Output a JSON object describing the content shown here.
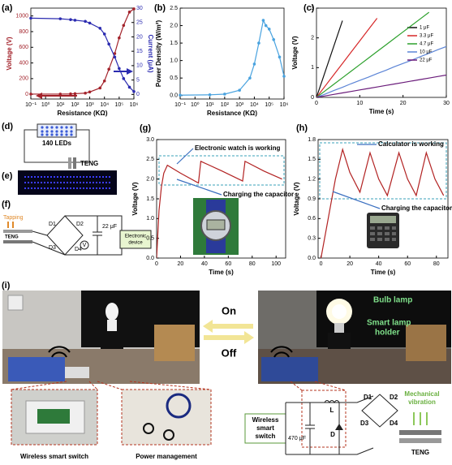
{
  "chart_data": [
    {
      "type": "line",
      "label": "(a)",
      "xlabel": "Resistance (KΩ)",
      "ylabel": "Voltage (V)",
      "y2label": "Current (μA)",
      "xlog": true,
      "xlim": [
        0.1,
        1000000
      ],
      "xticks": [
        {
          "value": 0.1,
          "label": "10⁻¹"
        },
        {
          "value": 1,
          "label": "10⁰"
        },
        {
          "value": 10,
          "label": "10¹"
        },
        {
          "value": 100,
          "label": "10²"
        },
        {
          "value": 1000,
          "label": "10³"
        },
        {
          "value": 10000,
          "label": "10⁴"
        },
        {
          "value": 100000,
          "label": "10⁵"
        },
        {
          "value": 1000000,
          "label": "10⁶"
        }
      ],
      "ylim": [
        -60,
        1100
      ],
      "yticks": [
        0,
        200,
        400,
        600,
        800,
        1000
      ],
      "y2lim": [
        -1.6,
        30
      ],
      "y2ticks": [
        0,
        5,
        10,
        15,
        20,
        25,
        30
      ],
      "markers": true,
      "x": [
        0.1,
        10,
        50,
        100,
        500,
        1000,
        5000,
        10000,
        20000,
        50000,
        100000,
        200000,
        500000,
        1000000
      ],
      "series": [
        {
          "name": "Voltage",
          "color": "#a3232b",
          "values": [
            3,
            3,
            5,
            8,
            15,
            30,
            80,
            170,
            320,
            520,
            720,
            880,
            1050,
            1090
          ]
        },
        {
          "name": "Current",
          "color": "#2b2bb0",
          "axis": "y2",
          "values": [
            26.5,
            26.3,
            26,
            25.8,
            25.4,
            24.8,
            23,
            21,
            17.5,
            13,
            9,
            5.5,
            2.5,
            1
          ]
        }
      ]
    },
    {
      "type": "line",
      "label": "(b)",
      "xlabel": "Resistance (KΩ)",
      "ylabel": "Power Density (W/m²)",
      "xlog": true,
      "xlim": [
        0.1,
        1000000
      ],
      "xticks": [
        {
          "value": 0.1,
          "label": "10⁻¹"
        },
        {
          "value": 1,
          "label": "10⁰"
        },
        {
          "value": 10,
          "label": "10¹"
        },
        {
          "value": 100,
          "label": "10²"
        },
        {
          "value": 1000,
          "label": "10³"
        },
        {
          "value": 10000,
          "label": "10⁴"
        },
        {
          "value": 100000,
          "label": "10⁵"
        },
        {
          "value": 1000000,
          "label": "10⁶"
        }
      ],
      "ylim": [
        -0.1,
        2.5
      ],
      "yticks": [
        {
          "value": 0,
          "label": "0.0"
        },
        {
          "value": 0.5,
          "label": "0.5"
        },
        {
          "value": 1,
          "label": "1.0"
        },
        {
          "value": 1.5,
          "label": "1.5"
        },
        {
          "value": 2,
          "label": "2.0"
        },
        {
          "value": 2.5,
          "label": "2.5"
        }
      ],
      "markers": true,
      "x": [
        0.1,
        10,
        100,
        1000,
        5000,
        10000,
        20000,
        40000,
        60000,
        100000,
        200000,
        500000,
        1000000
      ],
      "series": [
        {
          "name": "Power Density",
          "color": "#4aa3df",
          "values": [
            0.01,
            0.02,
            0.04,
            0.15,
            0.5,
            0.9,
            1.5,
            2.15,
            2.0,
            1.9,
            1.6,
            1.1,
            0.55
          ]
        }
      ]
    },
    {
      "type": "line",
      "label": "(c)",
      "xlabel": "Time (s)",
      "ylabel": "Voltage (V)",
      "xlim": [
        0,
        30
      ],
      "xticks": [
        0,
        10,
        20,
        30
      ],
      "ylim": [
        0,
        3
      ],
      "yticks": [
        0,
        1,
        2,
        3
      ],
      "legend": "upper right",
      "x": [
        0,
        2,
        4,
        6,
        8,
        10,
        12,
        14,
        16,
        18,
        20,
        22,
        24,
        26,
        28,
        30
      ],
      "series": [
        {
          "name": "1 μF",
          "color": "#111111",
          "values": [
            0,
            0.86,
            1.72,
            2.58,
            null,
            null,
            null,
            null,
            null,
            null,
            null,
            null,
            null,
            null,
            null,
            null
          ]
        },
        {
          "name": "3.3 μF",
          "color": "#d62728",
          "values": [
            0,
            0.38,
            0.76,
            1.14,
            1.52,
            1.9,
            2.28,
            2.66,
            null,
            null,
            null,
            null,
            null,
            null,
            null,
            null
          ]
        },
        {
          "name": "4.7 μF",
          "color": "#2ca02c",
          "values": [
            0,
            0.22,
            0.44,
            0.66,
            0.88,
            1.1,
            1.32,
            1.54,
            1.76,
            1.98,
            2.2,
            2.42,
            2.64,
            2.86,
            null,
            null
          ]
        },
        {
          "name": "10 μF",
          "color": "#5b84d6",
          "values": [
            0,
            0.11,
            0.23,
            0.34,
            0.46,
            0.57,
            0.68,
            0.8,
            0.91,
            1.03,
            1.14,
            1.25,
            1.37,
            1.48,
            1.6,
            1.71
          ]
        },
        {
          "name": "22 μF",
          "color": "#6a1b7a",
          "values": [
            0,
            0.05,
            0.1,
            0.15,
            0.2,
            0.25,
            0.3,
            0.35,
            0.4,
            0.45,
            0.5,
            0.55,
            0.6,
            0.65,
            0.7,
            0.75
          ]
        }
      ]
    },
    {
      "type": "line",
      "label": "(g)",
      "xlabel": "Time (s)",
      "ylabel": "Voltage (V)",
      "xlim": [
        0,
        108
      ],
      "xticks": [
        0,
        20,
        40,
        60,
        80,
        100
      ],
      "ylim": [
        0,
        3
      ],
      "yticks": [
        {
          "value": 0,
          "label": "0.0"
        },
        {
          "value": 0.5,
          "label": "0.5"
        },
        {
          "value": 1,
          "label": "1.0"
        },
        {
          "value": 1.5,
          "label": "1.5"
        },
        {
          "value": 2,
          "label": "2.0"
        },
        {
          "value": 2.5,
          "label": "2.5"
        },
        {
          "value": 3,
          "label": "3.0"
        }
      ],
      "annotations": [
        "Electronic watch is working",
        "Charging the capacitor"
      ],
      "x": [
        0,
        2,
        4,
        6,
        9,
        20,
        35,
        37,
        55,
        72,
        74,
        90,
        105
      ],
      "series": [
        {
          "name": "Voltage",
          "color": "#b22222",
          "values": [
            0,
            1.2,
            1.8,
            2.15,
            2.35,
            2.15,
            1.9,
            2.45,
            2.2,
            1.95,
            2.45,
            2.2,
            2.0
          ]
        }
      ]
    },
    {
      "type": "line",
      "label": "(h)",
      "xlabel": "Time (s)",
      "ylabel": "Voltage (V)",
      "xlim": [
        -2,
        88
      ],
      "xticks": [
        0,
        20,
        40,
        60,
        80
      ],
      "ylim": [
        0,
        1.8
      ],
      "yticks": [
        {
          "value": 0,
          "label": "0.0"
        },
        {
          "value": 0.3,
          "label": "0.3"
        },
        {
          "value": 0.6,
          "label": "0.6"
        },
        {
          "value": 0.9,
          "label": "0.9"
        },
        {
          "value": 1.2,
          "label": "1.2"
        },
        {
          "value": 1.5,
          "label": "1.5"
        },
        {
          "value": 1.8,
          "label": "1.8"
        }
      ],
      "annotations": [
        "Calculator is working",
        "Charging the capacitor"
      ],
      "x": [
        0,
        5,
        10,
        15,
        20,
        27,
        34,
        40,
        46,
        54,
        60,
        66,
        73,
        79,
        85
      ],
      "series": [
        {
          "name": "Voltage",
          "color": "#b22222",
          "values": [
            0,
            0.6,
            1.2,
            1.65,
            1.3,
            1.0,
            1.6,
            1.2,
            0.95,
            1.6,
            1.2,
            0.95,
            1.6,
            1.2,
            0.95
          ]
        }
      ]
    }
  ],
  "panels": {
    "d": {
      "label": "(d)",
      "leds": "140 LEDs",
      "teng": "TENG"
    },
    "e": {
      "label": "(e)"
    },
    "f": {
      "label": "(f)",
      "tapping": "Tapping",
      "teng": "TENG",
      "d1": "D1",
      "d2": "D2",
      "d3": "D3",
      "d4": "D4",
      "capacitor": "22 μF",
      "meter": "V",
      "device": [
        "Electronic",
        "device"
      ]
    },
    "i": {
      "label": "(i)",
      "on": "On",
      "off": "Off",
      "bulb": "Bulb lamp",
      "holder": [
        "Smart lamp",
        "holder"
      ],
      "switch": "Wireless smart switch",
      "power": "Power management",
      "circuit": {
        "switch": [
          "Wireless",
          "smart",
          "switch"
        ],
        "capacitor": "470 μF",
        "inductor": "L",
        "diode": "D",
        "d1": "D1",
        "d2": "D2",
        "d3": "D3",
        "d4": "D4",
        "vibration": [
          "Mechanical",
          "vibration"
        ],
        "teng": "TENG"
      }
    }
  }
}
